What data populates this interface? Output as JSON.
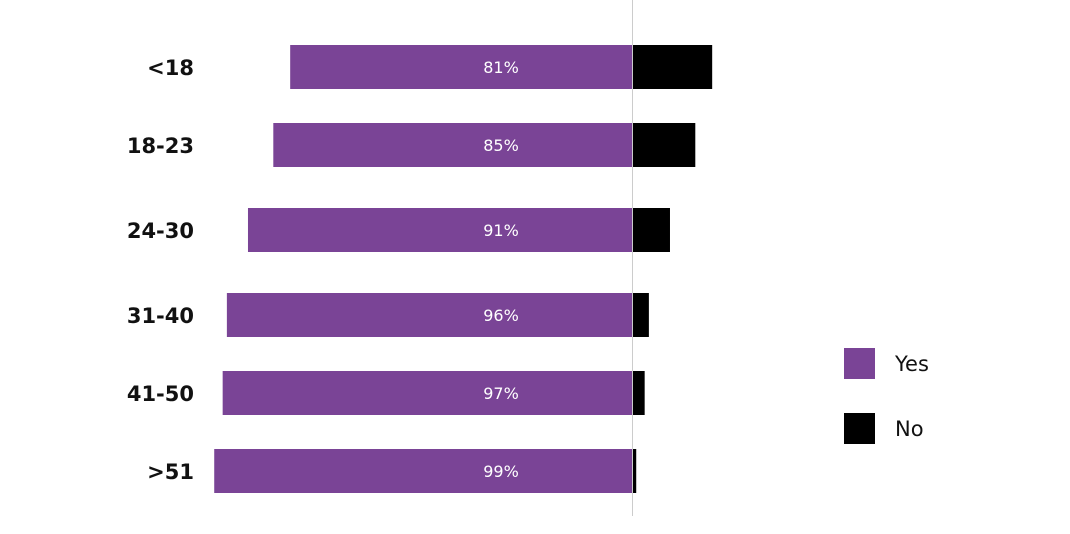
{
  "chart_data": {
    "type": "bar",
    "orientation": "horizontal-diverging",
    "categories": [
      "<18",
      "18-23",
      "24-30",
      "31-40",
      "41-50",
      ">51"
    ],
    "series": [
      {
        "name": "Yes",
        "values": [
          81,
          85,
          91,
          96,
          97,
          99
        ],
        "color": "#7a4496"
      },
      {
        "name": "No",
        "values": [
          19,
          15,
          9,
          4,
          3,
          1
        ],
        "color": "#000000"
      }
    ],
    "data_labels": [
      "81%",
      "85%",
      "91%",
      "96%",
      "97%",
      "99%"
    ],
    "title": "",
    "xlabel": "",
    "ylabel": "",
    "legend_position": "right",
    "grid": false,
    "center_line": true
  }
}
